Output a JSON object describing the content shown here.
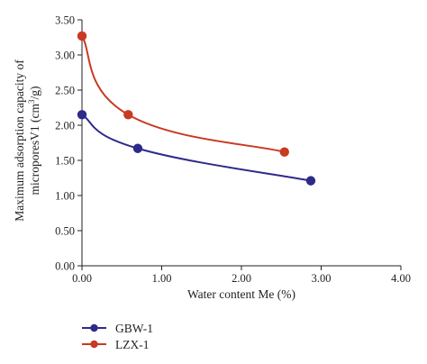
{
  "chart_data": {
    "type": "line",
    "xlabel": "Water content Me (%)",
    "ylabel_line1": "Maximum adsorption capacity of",
    "ylabel_line2_pre": "microporesV1 (cm",
    "ylabel_line2_sup": "3",
    "ylabel_line2_post": "/g)",
    "xlim": [
      0,
      4
    ],
    "ylim": [
      0,
      3.5
    ],
    "x_ticks": [
      "0.00",
      "1.00",
      "2.00",
      "3.00",
      "4.00"
    ],
    "y_ticks": [
      "0.00",
      "0.50",
      "1.00",
      "1.50",
      "2.00",
      "2.50",
      "3.00",
      "3.50"
    ],
    "legend_position": "bottom-left",
    "series": [
      {
        "name": "GBW-1",
        "color": "#2e2a8a",
        "x": [
          0.0,
          0.7,
          2.87
        ],
        "y": [
          2.15,
          1.67,
          1.21
        ]
      },
      {
        "name": "LZX-1",
        "color": "#c83a22",
        "x": [
          0.0,
          0.58,
          2.54
        ],
        "y": [
          3.27,
          2.15,
          1.62
        ]
      }
    ]
  }
}
